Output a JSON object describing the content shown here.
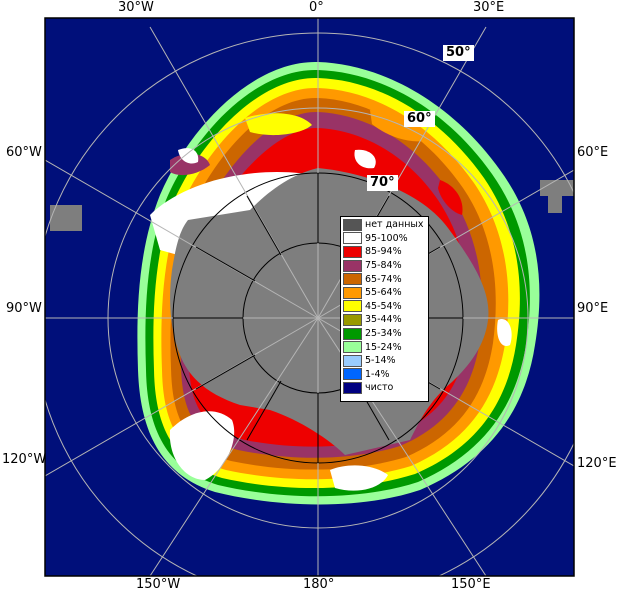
{
  "map": {
    "longitude_labels": [
      "30°W",
      "0°",
      "30°E",
      "60°W",
      "60°E",
      "90°W",
      "90°E",
      "120°W",
      "120°E",
      "150°W",
      "180°",
      "150°E"
    ],
    "latitude_labels": [
      "50°",
      "60°",
      "70°"
    ],
    "colors": {
      "ocean": "#000f7a",
      "no_data": "#7e7e7e",
      "frame": "#000000",
      "graticule": "#b5b5b5"
    }
  },
  "legend": {
    "items": [
      {
        "label": "нет данных",
        "color": "#555555"
      },
      {
        "label": "95-100%",
        "color": "#ffffff"
      },
      {
        "label": "85-94%",
        "color": "#ee0000"
      },
      {
        "label": "75-84%",
        "color": "#993366"
      },
      {
        "label": "65-74%",
        "color": "#cc6600"
      },
      {
        "label": "55-64%",
        "color": "#ff9900"
      },
      {
        "label": "45-54%",
        "color": "#ffff00"
      },
      {
        "label": "35-44%",
        "color": "#999900"
      },
      {
        "label": "25-34%",
        "color": "#009900"
      },
      {
        "label": "15-24%",
        "color": "#99ff99"
      },
      {
        "label": "5-14%",
        "color": "#99ccff"
      },
      {
        "label": "1-4%",
        "color": "#0066ff"
      },
      {
        "label": "чисто",
        "color": "#000080"
      }
    ]
  }
}
